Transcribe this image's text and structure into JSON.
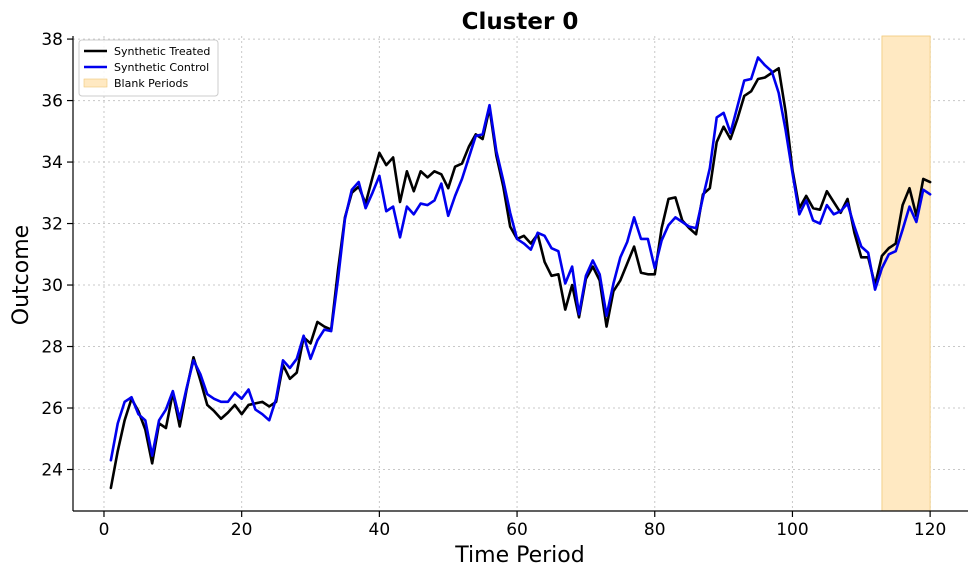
{
  "chart_data": {
    "type": "line",
    "title": "Cluster 0",
    "xlabel": "Time Period",
    "ylabel": "Outcome",
    "xlim": [
      -4.5,
      125.5
    ],
    "ylim": [
      22.65,
      38.1
    ],
    "xticks": [
      0,
      20,
      40,
      60,
      80,
      100,
      120
    ],
    "yticks": [
      24,
      26,
      28,
      30,
      32,
      34,
      36,
      38
    ],
    "grid": true,
    "legend_position": "top-left",
    "blank_period": {
      "label": "Blank Periods",
      "start": 113,
      "end": 120,
      "color": "#ffe9c2"
    },
    "series": [
      {
        "name": "Synthetic Treated",
        "color": "#000000",
        "x": [
          1,
          2,
          3,
          4,
          5,
          6,
          7,
          8,
          9,
          10,
          11,
          12,
          13,
          14,
          15,
          16,
          17,
          18,
          19,
          20,
          21,
          22,
          23,
          24,
          25,
          26,
          27,
          28,
          29,
          30,
          31,
          32,
          33,
          34,
          35,
          36,
          37,
          38,
          39,
          40,
          41,
          42,
          43,
          44,
          45,
          46,
          47,
          48,
          49,
          50,
          51,
          52,
          53,
          54,
          55,
          56,
          57,
          58,
          59,
          60,
          61,
          62,
          63,
          64,
          65,
          66,
          67,
          68,
          69,
          70,
          71,
          72,
          73,
          74,
          75,
          76,
          77,
          78,
          79,
          80,
          81,
          82,
          83,
          84,
          85,
          86,
          87,
          88,
          89,
          90,
          91,
          92,
          93,
          94,
          95,
          96,
          97,
          98,
          99,
          100,
          101,
          102,
          103,
          104,
          105,
          106,
          107,
          108,
          109,
          110,
          111,
          112,
          113,
          114,
          115,
          116,
          117,
          118,
          119,
          120
        ],
        "y": [
          23.4,
          24.6,
          25.6,
          26.3,
          25.9,
          25.3,
          24.2,
          25.5,
          25.35,
          26.5,
          25.4,
          26.6,
          27.65,
          26.9,
          26.1,
          25.9,
          25.65,
          25.85,
          26.1,
          25.8,
          26.1,
          26.15,
          26.2,
          26.05,
          26.2,
          27.4,
          26.95,
          27.15,
          28.3,
          28.1,
          28.8,
          28.65,
          28.55,
          30.5,
          32.2,
          33.0,
          33.2,
          32.65,
          33.5,
          34.3,
          33.9,
          34.15,
          32.7,
          33.7,
          33.05,
          33.7,
          33.5,
          33.7,
          33.6,
          33.15,
          33.85,
          33.95,
          34.5,
          34.9,
          34.75,
          35.75,
          34.2,
          33.2,
          31.9,
          31.5,
          31.6,
          31.35,
          31.65,
          30.75,
          30.3,
          30.35,
          29.2,
          30.0,
          28.95,
          30.2,
          30.6,
          30.15,
          28.65,
          29.8,
          30.15,
          30.7,
          31.25,
          30.4,
          30.35,
          30.35,
          31.85,
          32.8,
          32.85,
          32.1,
          31.85,
          31.65,
          32.95,
          33.15,
          34.65,
          35.15,
          34.75,
          35.4,
          36.15,
          36.3,
          36.7,
          36.75,
          36.9,
          37.05,
          35.65,
          33.75,
          32.5,
          32.9,
          32.5,
          32.45,
          33.05,
          32.7,
          32.35,
          32.8,
          31.7,
          30.9,
          30.9,
          30.0,
          30.95,
          31.2,
          31.35,
          32.6,
          33.15,
          32.25,
          33.45,
          33.35
        ]
      },
      {
        "name": "Synthetic Control",
        "color": "#0000ee",
        "x": [
          1,
          2,
          3,
          4,
          5,
          6,
          7,
          8,
          9,
          10,
          11,
          12,
          13,
          14,
          15,
          16,
          17,
          18,
          19,
          20,
          21,
          22,
          23,
          24,
          25,
          26,
          27,
          28,
          29,
          30,
          31,
          32,
          33,
          34,
          35,
          36,
          37,
          38,
          39,
          40,
          41,
          42,
          43,
          44,
          45,
          46,
          47,
          48,
          49,
          50,
          51,
          52,
          53,
          54,
          55,
          56,
          57,
          58,
          59,
          60,
          61,
          62,
          63,
          64,
          65,
          66,
          67,
          68,
          69,
          70,
          71,
          72,
          73,
          74,
          75,
          76,
          77,
          78,
          79,
          80,
          81,
          82,
          83,
          84,
          85,
          86,
          87,
          88,
          89,
          90,
          91,
          92,
          93,
          94,
          95,
          96,
          97,
          98,
          99,
          100,
          101,
          102,
          103,
          104,
          105,
          106,
          107,
          108,
          109,
          110,
          111,
          112,
          113,
          114,
          115,
          116,
          117,
          118,
          119,
          120
        ],
        "y": [
          24.3,
          25.5,
          26.2,
          26.35,
          25.8,
          25.6,
          24.45,
          25.6,
          25.95,
          26.55,
          25.65,
          26.65,
          27.55,
          27.1,
          26.45,
          26.3,
          26.2,
          26.2,
          26.5,
          26.3,
          26.6,
          25.95,
          25.8,
          25.6,
          26.3,
          27.55,
          27.3,
          27.6,
          28.35,
          27.6,
          28.2,
          28.55,
          28.5,
          30.2,
          32.15,
          33.1,
          33.35,
          32.5,
          33.0,
          33.55,
          32.4,
          32.55,
          31.55,
          32.55,
          32.3,
          32.65,
          32.6,
          32.75,
          33.3,
          32.25,
          32.9,
          33.45,
          34.15,
          34.85,
          34.9,
          35.85,
          34.35,
          33.4,
          32.35,
          31.5,
          31.35,
          31.15,
          31.7,
          31.6,
          31.2,
          31.1,
          30.05,
          30.6,
          29.05,
          30.3,
          30.8,
          30.35,
          29.0,
          30.05,
          30.9,
          31.4,
          32.2,
          31.5,
          31.5,
          30.55,
          31.45,
          31.95,
          32.2,
          32.05,
          31.9,
          31.85,
          32.85,
          33.8,
          35.45,
          35.6,
          34.95,
          35.8,
          36.65,
          36.7,
          37.4,
          37.15,
          36.95,
          36.25,
          35.05,
          33.65,
          32.3,
          32.75,
          32.1,
          32.0,
          32.6,
          32.3,
          32.4,
          32.65,
          31.9,
          31.25,
          31.05,
          29.85,
          30.55,
          31.0,
          31.1,
          31.8,
          32.55,
          32.05,
          33.1,
          32.95
        ]
      }
    ]
  }
}
